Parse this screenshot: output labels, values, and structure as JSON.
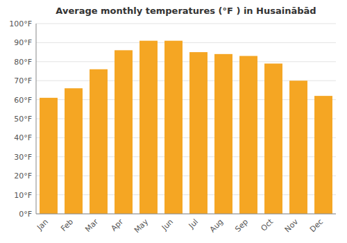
{
  "chart_data": {
    "type": "bar",
    "title": "Average monthly temperatures (°F ) in Husainābād",
    "categories": [
      "Jan",
      "Feb",
      "Mar",
      "Apr",
      "May",
      "Jun",
      "Jul",
      "Aug",
      "Sep",
      "Oct",
      "Nov",
      "Dec"
    ],
    "values": [
      61,
      66,
      76,
      86,
      91,
      91,
      85,
      84,
      83,
      79,
      70,
      62
    ],
    "color": "#F5A623",
    "ylim": [
      0,
      100
    ],
    "yticks": [
      {
        "value": 0,
        "label": "0°F"
      },
      {
        "value": 10,
        "label": "10°F"
      },
      {
        "value": 20,
        "label": "20°F"
      },
      {
        "value": 30,
        "label": "30°F"
      },
      {
        "value": 40,
        "label": "40°F"
      },
      {
        "value": 50,
        "label": "50°F"
      },
      {
        "value": 60,
        "label": "60°F"
      },
      {
        "value": 70,
        "label": "70°F"
      },
      {
        "value": 80,
        "label": "80°F"
      },
      {
        "value": 90,
        "label": "90°F"
      },
      {
        "value": 100,
        "label": "100°F"
      }
    ],
    "grid": true
  }
}
